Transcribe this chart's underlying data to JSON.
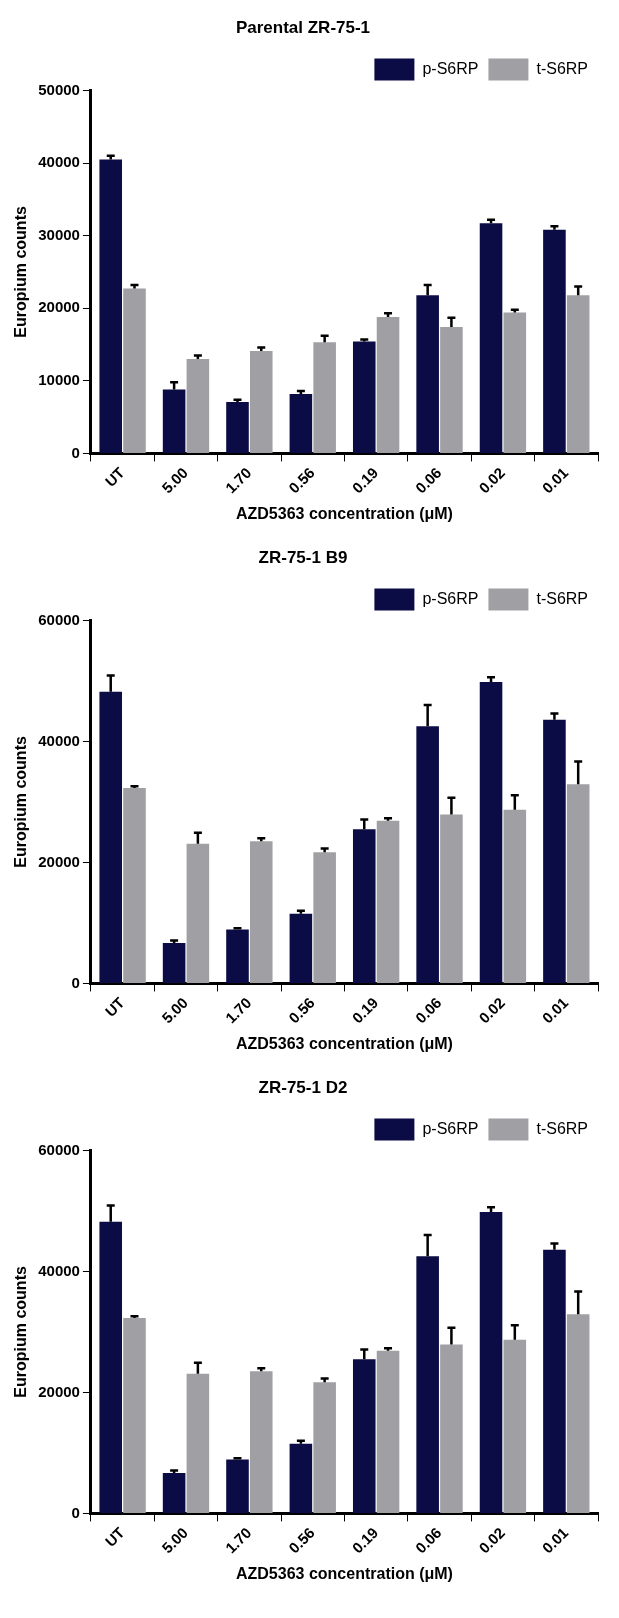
{
  "chart_data": [
    {
      "type": "bar",
      "title": "Parental ZR-75-1",
      "xlabel": "AZD5363 concentration (μM)",
      "ylabel": "Europium counts",
      "categories": [
        "UT",
        "5.00",
        "1.70",
        "0.56",
        "0.19",
        "0.06",
        "0.02",
        "0.01"
      ],
      "ylim": [
        0,
        50000
      ],
      "yticks": [
        0,
        10000,
        20000,
        30000,
        40000,
        50000
      ],
      "grid": false,
      "legend": "top right",
      "series": [
        {
          "name": "p-S6RP",
          "color": "#0b0b45",
          "values": [
            40500,
            8800,
            7100,
            8200,
            15400,
            21800,
            31700,
            30800
          ],
          "errors": [
            [
              40500,
              41000
            ],
            [
              8800,
              9800
            ],
            [
              7100,
              7400
            ],
            [
              8200,
              8600
            ],
            [
              15400,
              15700
            ],
            [
              21800,
              23200
            ],
            [
              31700,
              32200
            ],
            [
              30800,
              31300
            ]
          ]
        },
        {
          "name": "t-S6RP",
          "color": "#a0a0a4",
          "values": [
            22700,
            13000,
            14100,
            15300,
            18800,
            17400,
            19400,
            21800
          ],
          "errors": [
            [
              22700,
              23200
            ],
            [
              13000,
              13500
            ],
            [
              14100,
              14600
            ],
            [
              15300,
              16200
            ],
            [
              18800,
              19300
            ],
            [
              17400,
              18700
            ],
            [
              19400,
              19800
            ],
            [
              21800,
              23000
            ]
          ]
        }
      ]
    },
    {
      "type": "bar",
      "title": "ZR-75-1 B9",
      "xlabel": "AZD5363 concentration (μM)",
      "ylabel": "Europium counts",
      "categories": [
        "UT",
        "5.00",
        "1.70",
        "0.56",
        "0.19",
        "0.06",
        "0.02",
        "0.01"
      ],
      "ylim": [
        0,
        60000
      ],
      "yticks": [
        0,
        20000,
        40000,
        60000
      ],
      "grid": false,
      "legend": "top right",
      "series": [
        {
          "name": "p-S6RP",
          "color": "#0b0b45",
          "values": [
            48200,
            6700,
            8900,
            11500,
            25500,
            42500,
            49800,
            43600
          ],
          "errors": [
            [
              48200,
              50900
            ],
            [
              6700,
              7100
            ],
            [
              8900,
              9100
            ],
            [
              11500,
              12000
            ],
            [
              25500,
              27100
            ],
            [
              42500,
              46000
            ],
            [
              49800,
              50600
            ],
            [
              43600,
              44600
            ]
          ]
        },
        {
          "name": "t-S6RP",
          "color": "#a0a0a4",
          "values": [
            32300,
            23100,
            23500,
            21700,
            26900,
            27900,
            28700,
            32900
          ],
          "errors": [
            [
              32300,
              32600
            ],
            [
              23100,
              24900
            ],
            [
              23500,
              24000
            ],
            [
              21700,
              22300
            ],
            [
              26900,
              27300
            ],
            [
              27900,
              30700
            ],
            [
              28700,
              31100
            ],
            [
              32900,
              36700
            ]
          ]
        }
      ]
    },
    {
      "type": "bar",
      "title": "ZR-75-1 D2",
      "xlabel": "AZD5363 concentration (μM)",
      "ylabel": "Europium counts",
      "categories": [
        "UT",
        "5.00",
        "1.70",
        "0.56",
        "0.19",
        "0.06",
        "0.02",
        "0.01"
      ],
      "ylim": [
        0,
        60000
      ],
      "yticks": [
        0,
        20000,
        40000,
        60000
      ],
      "grid": false,
      "legend": "top right",
      "series": [
        {
          "name": "p-S6RP",
          "color": "#0b0b45",
          "values": [
            48200,
            6700,
            8900,
            11500,
            25500,
            42500,
            49800,
            43600
          ],
          "errors": [
            [
              48200,
              50900
            ],
            [
              6700,
              7100
            ],
            [
              8900,
              9100
            ],
            [
              11500,
              12000
            ],
            [
              25500,
              27100
            ],
            [
              42500,
              46000
            ],
            [
              49800,
              50600
            ],
            [
              43600,
              44600
            ]
          ]
        },
        {
          "name": "t-S6RP",
          "color": "#a0a0a4",
          "values": [
            32300,
            23100,
            23500,
            21700,
            26900,
            27900,
            28700,
            32900
          ],
          "errors": [
            [
              32300,
              32600
            ],
            [
              23100,
              24900
            ],
            [
              23500,
              24000
            ],
            [
              21700,
              22300
            ],
            [
              26900,
              27300
            ],
            [
              27900,
              30700
            ],
            [
              28700,
              31100
            ],
            [
              32900,
              36700
            ]
          ]
        }
      ]
    }
  ]
}
